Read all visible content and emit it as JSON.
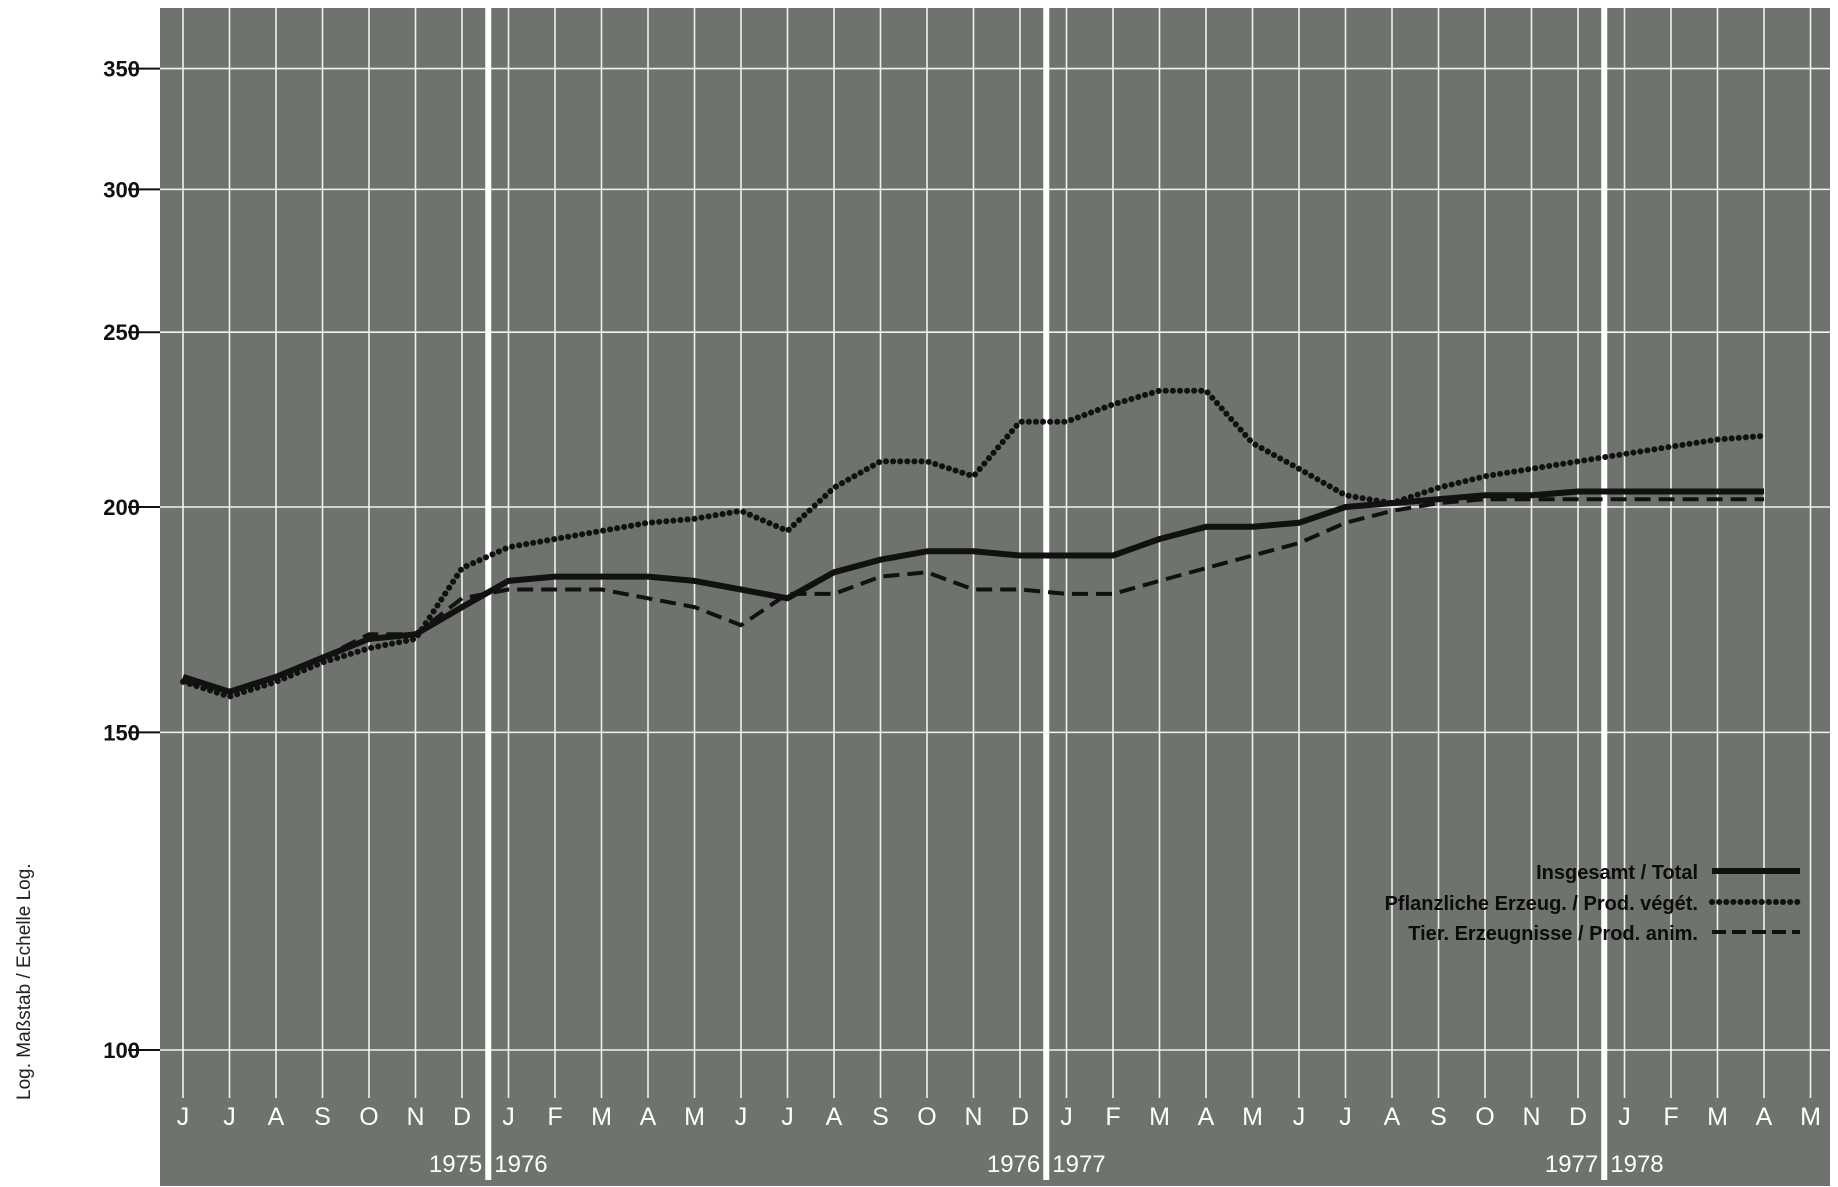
{
  "chart_data": {
    "type": "line",
    "ylabel": "Log. Maßstab / Echelle Log.",
    "y_scale": "log",
    "ylim": [
      88,
      370
    ],
    "y_ticks": [
      100,
      150,
      200,
      250,
      300,
      350
    ],
    "month_labels": [
      "J",
      "J",
      "A",
      "S",
      "O",
      "N",
      "D",
      "J",
      "F",
      "M",
      "A",
      "M",
      "J",
      "J",
      "A",
      "S",
      "O",
      "N",
      "D",
      "J",
      "F",
      "M",
      "A",
      "M",
      "J",
      "J",
      "A",
      "S",
      "O",
      "N",
      "D",
      "J",
      "F",
      "M",
      "A",
      "M"
    ],
    "year_labels": [
      {
        "text": "1975",
        "side": "left",
        "after_month": 6
      },
      {
        "text": "1976",
        "side": "right",
        "after_month": 6
      },
      {
        "text": "1976",
        "side": "left",
        "after_month": 18
      },
      {
        "text": "1977",
        "side": "right",
        "after_month": 18
      },
      {
        "text": "1977",
        "side": "left",
        "after_month": 30
      },
      {
        "text": "1978",
        "side": "right",
        "after_month": 30
      }
    ],
    "grid": true,
    "legend_position": "bottom-right",
    "x": [
      "1975-06",
      "1975-07",
      "1975-08",
      "1975-09",
      "1975-10",
      "1975-11",
      "1975-12",
      "1976-01",
      "1976-02",
      "1976-03",
      "1976-04",
      "1976-05",
      "1976-06",
      "1976-07",
      "1976-08",
      "1976-09",
      "1976-10",
      "1976-11",
      "1976-12",
      "1977-01",
      "1977-02",
      "1977-03",
      "1977-04",
      "1977-05",
      "1977-06",
      "1977-07",
      "1977-08",
      "1977-09",
      "1977-10",
      "1977-11",
      "1977-12",
      "1978-01",
      "1978-02",
      "1978-03",
      "1978-04"
    ],
    "series": [
      {
        "name": "Insgesamt / Total",
        "style": "solid",
        "values": [
          161,
          158,
          161,
          165,
          169,
          170,
          176,
          182,
          183,
          183,
          183,
          182,
          180,
          178,
          184,
          187,
          189,
          189,
          188,
          188,
          188,
          192,
          195,
          195,
          196,
          200,
          201,
          202,
          203,
          203,
          204,
          204,
          204,
          204,
          204
        ]
      },
      {
        "name": "Pflanzliche Erzeug. / Prod. végét.",
        "style": "dotted",
        "values": [
          160,
          157,
          160,
          164,
          167,
          169,
          185,
          190,
          192,
          194,
          196,
          197,
          199,
          194,
          205,
          212,
          212,
          208,
          223,
          223,
          228,
          232,
          232,
          217,
          210,
          203,
          201,
          205,
          208,
          210,
          212,
          214,
          216,
          218,
          219
        ]
      },
      {
        "name": "Tier. Erzeugnisse / Prod. anim.",
        "style": "dashed",
        "values": [
          160,
          158,
          161,
          165,
          170,
          170,
          178,
          180,
          180,
          180,
          178,
          176,
          172,
          179,
          179,
          183,
          184,
          180,
          180,
          179,
          179,
          182,
          185,
          188,
          191,
          196,
          199,
          201,
          202,
          202,
          202,
          202,
          202,
          202,
          202
        ]
      }
    ]
  },
  "colors": {
    "plot_bg": "#6f736d",
    "grid": "#f2f2f2",
    "line": "#111111",
    "frame_bg": "#ffffff"
  }
}
